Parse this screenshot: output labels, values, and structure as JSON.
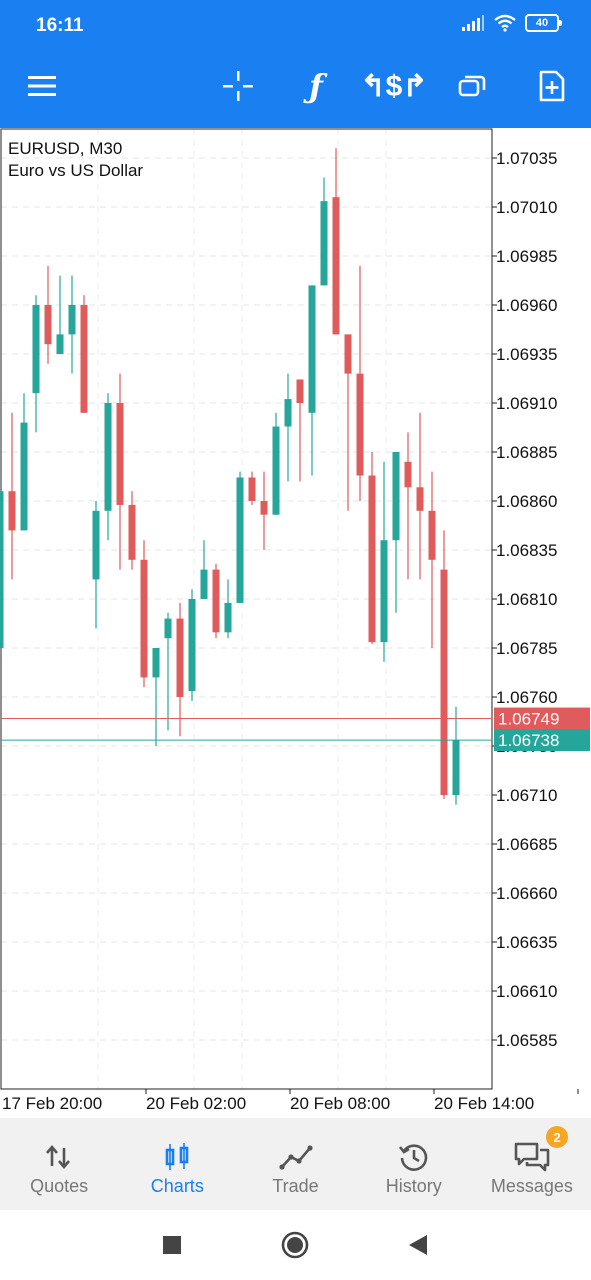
{
  "status_bar": {
    "time": "16:11",
    "battery": "40",
    "icons": [
      "signal-icon",
      "wifi-icon",
      "battery-icon"
    ]
  },
  "toolbar": {
    "icons": [
      "menu-icon",
      "crosshair-icon",
      "indicators-icon",
      "trade-dollar-icon",
      "windows-icon",
      "add-object-icon"
    ],
    "color": "#1a7ff0"
  },
  "chart": {
    "symbol_line": "EURUSD, M30",
    "description": "Euro vs US Dollar",
    "bid_price_label": "1.06738",
    "ask_price_label": "1.06749",
    "bid_color": "#26a69a",
    "ask_color": "#e05b5b"
  },
  "chart_data": {
    "type": "candlestick",
    "symbol": "EURUSD",
    "timeframe": "M30",
    "y_ticks": [
      "1.07035",
      "1.07010",
      "1.06985",
      "1.06960",
      "1.06935",
      "1.06910",
      "1.06885",
      "1.06860",
      "1.06835",
      "1.06810",
      "1.06785",
      "1.06760",
      "1.06735",
      "1.06710",
      "1.06685",
      "1.06660",
      "1.06635",
      "1.06610",
      "1.06585"
    ],
    "ylim": [
      1.06565,
      1.07055
    ],
    "x_ticks": [
      "17 Feb 20:00",
      "20 Feb 02:00",
      "20 Feb 08:00",
      "20 Feb 14:00"
    ],
    "grid": true,
    "bull_color": "#26a69a",
    "bear_color": "#e05b5b",
    "bid": 1.06738,
    "ask": 1.06749,
    "candles": [
      {
        "o": 1.06785,
        "h": 1.06865,
        "l": 1.06785,
        "c": 1.06865
      },
      {
        "o": 1.06865,
        "h": 1.06905,
        "l": 1.0682,
        "c": 1.06845
      },
      {
        "o": 1.06845,
        "h": 1.06915,
        "l": 1.06845,
        "c": 1.069
      },
      {
        "o": 1.06915,
        "h": 1.06965,
        "l": 1.06895,
        "c": 1.0696
      },
      {
        "o": 1.0696,
        "h": 1.0698,
        "l": 1.0693,
        "c": 1.0694
      },
      {
        "o": 1.06935,
        "h": 1.06975,
        "l": 1.06935,
        "c": 1.06945
      },
      {
        "o": 1.06945,
        "h": 1.06975,
        "l": 1.06925,
        "c": 1.0696
      },
      {
        "o": 1.0696,
        "h": 1.06965,
        "l": 1.06905,
        "c": 1.06905
      },
      {
        "o": 1.0682,
        "h": 1.0686,
        "l": 1.06795,
        "c": 1.06855
      },
      {
        "o": 1.06855,
        "h": 1.06915,
        "l": 1.0684,
        "c": 1.0691
      },
      {
        "o": 1.0691,
        "h": 1.06925,
        "l": 1.06825,
        "c": 1.06858
      },
      {
        "o": 1.06858,
        "h": 1.06865,
        "l": 1.06825,
        "c": 1.0683
      },
      {
        "o": 1.0683,
        "h": 1.0684,
        "l": 1.06765,
        "c": 1.0677
      },
      {
        "o": 1.0677,
        "h": 1.06785,
        "l": 1.06735,
        "c": 1.06785
      },
      {
        "o": 1.0679,
        "h": 1.06803,
        "l": 1.06743,
        "c": 1.068
      },
      {
        "o": 1.068,
        "h": 1.06808,
        "l": 1.0674,
        "c": 1.0676
      },
      {
        "o": 1.06763,
        "h": 1.06815,
        "l": 1.06758,
        "c": 1.0681
      },
      {
        "o": 1.0681,
        "h": 1.0684,
        "l": 1.0681,
        "c": 1.06825
      },
      {
        "o": 1.06825,
        "h": 1.06828,
        "l": 1.0679,
        "c": 1.06793
      },
      {
        "o": 1.06793,
        "h": 1.0682,
        "l": 1.0679,
        "c": 1.06808
      },
      {
        "o": 1.06808,
        "h": 1.06875,
        "l": 1.06808,
        "c": 1.06872
      },
      {
        "o": 1.06872,
        "h": 1.06875,
        "l": 1.06858,
        "c": 1.0686
      },
      {
        "o": 1.0686,
        "h": 1.06875,
        "l": 1.06835,
        "c": 1.06853
      },
      {
        "o": 1.06853,
        "h": 1.06905,
        "l": 1.06853,
        "c": 1.06898
      },
      {
        "o": 1.06898,
        "h": 1.06925,
        "l": 1.0687,
        "c": 1.06912
      },
      {
        "o": 1.06922,
        "h": 1.06922,
        "l": 1.0687,
        "c": 1.0691
      },
      {
        "o": 1.06905,
        "h": 1.0697,
        "l": 1.06873,
        "c": 1.0697
      },
      {
        "o": 1.0697,
        "h": 1.07025,
        "l": 1.0697,
        "c": 1.07013
      },
      {
        "o": 1.07015,
        "h": 1.0704,
        "l": 1.06945,
        "c": 1.06945
      },
      {
        "o": 1.06945,
        "h": 1.06945,
        "l": 1.06855,
        "c": 1.06925
      },
      {
        "o": 1.06925,
        "h": 1.0698,
        "l": 1.0686,
        "c": 1.06873
      },
      {
        "o": 1.06873,
        "h": 1.06885,
        "l": 1.06787,
        "c": 1.06788
      },
      {
        "o": 1.06788,
        "h": 1.0688,
        "l": 1.06778,
        "c": 1.0684
      },
      {
        "o": 1.0684,
        "h": 1.06885,
        "l": 1.06803,
        "c": 1.06885
      },
      {
        "o": 1.0688,
        "h": 1.06895,
        "l": 1.0682,
        "c": 1.06867
      },
      {
        "o": 1.06867,
        "h": 1.06905,
        "l": 1.0682,
        "c": 1.06855
      },
      {
        "o": 1.06855,
        "h": 1.06875,
        "l": 1.06785,
        "c": 1.0683
      },
      {
        "o": 1.06825,
        "h": 1.06845,
        "l": 1.06708,
        "c": 1.0671
      },
      {
        "o": 1.0671,
        "h": 1.06755,
        "l": 1.06705,
        "c": 1.06738
      }
    ]
  },
  "bottom_nav": {
    "items": [
      {
        "label": "Quotes",
        "icon": "quotes-icon"
      },
      {
        "label": "Charts",
        "icon": "charts-icon"
      },
      {
        "label": "Trade",
        "icon": "trade-icon"
      },
      {
        "label": "History",
        "icon": "history-icon"
      },
      {
        "label": "Messages",
        "icon": "messages-icon",
        "badge": "2"
      }
    ],
    "active": "Charts",
    "active_color": "#1a7ff0",
    "badge_color": "#f5a623"
  },
  "system_nav": {
    "icons": [
      "recents-icon",
      "home-icon",
      "back-icon"
    ]
  }
}
